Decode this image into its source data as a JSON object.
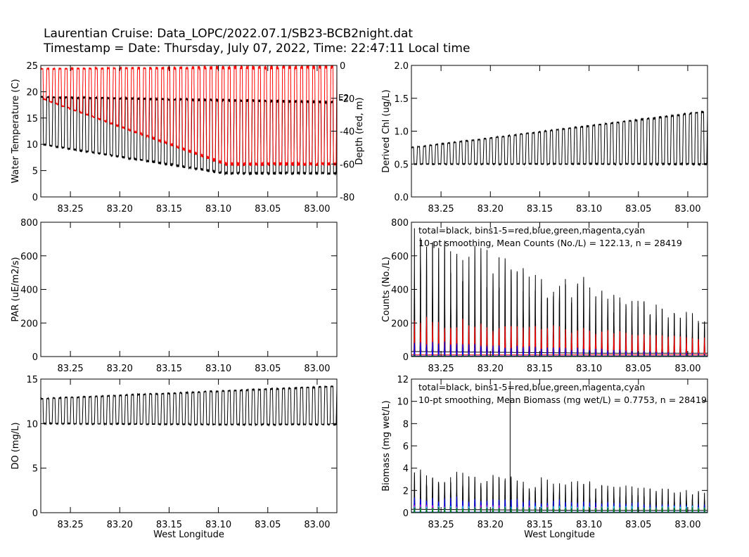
{
  "header": {
    "title": "Laurentian Cruise: Data_LOPC/2022.07.1/SB23-BCB2night.dat",
    "subtitle": "Timestamp = Date: Thursday, July 07, 2022, Time: 22:47:11 Local time"
  },
  "colors": {
    "total": "#000000",
    "depth": "#ff0000",
    "bin1": "#ff0000",
    "bin2": "#0000ff",
    "bin3": "#00c000",
    "bin4": "#ff00ff",
    "bin5": "#00ffff"
  },
  "x_axis": {
    "label": "West Longitude",
    "xlim": [
      83.28,
      82.98
    ],
    "ticks": [
      "83.25",
      "83.20",
      "83.15",
      "83.10",
      "83.05",
      "83.00"
    ]
  },
  "chart_data": [
    {
      "id": "temperature",
      "type": "line",
      "ylabel": "Water Temperature (C)",
      "ylim": [
        0,
        25
      ],
      "yticks": [
        "0",
        "5",
        "10",
        "15",
        "20",
        "25"
      ],
      "y2label": "Depth (red, m)",
      "y2lim": [
        -80,
        0
      ],
      "y2ticks": [
        "-80",
        "-60",
        "-40",
        "-20",
        "0"
      ],
      "y2_extra_label": "E2",
      "series": [
        {
          "color": "black",
          "profile": "yo",
          "cycles": 49,
          "top": [
            19,
            18
          ],
          "bottom": [
            10,
            4.5
          ]
        },
        {
          "color": "red",
          "axis": "right",
          "profile": "yo",
          "cycles": 49,
          "top": [
            -2,
            -1
          ],
          "bottom": [
            -20,
            -60
          ]
        }
      ]
    },
    {
      "id": "chl",
      "type": "line",
      "ylabel": "Derived Chl (ug/L)",
      "ylim": [
        0.0,
        2.0
      ],
      "yticks": [
        "0.0",
        "0.5",
        "1.0",
        "1.5",
        "2.0"
      ],
      "series": [
        {
          "color": "black",
          "profile": "yo",
          "cycles": 49,
          "top": [
            0.75,
            1.3
          ],
          "bottom": [
            0.5,
            0.5
          ]
        }
      ]
    },
    {
      "id": "par",
      "type": "line",
      "ylabel": "PAR (uE/m2/s)",
      "ylim": [
        0,
        800
      ],
      "yticks": [
        "0",
        "200",
        "400",
        "600",
        "800"
      ],
      "series": []
    },
    {
      "id": "counts",
      "type": "line",
      "ylabel": "Counts (No./L)",
      "ylim": [
        0,
        800
      ],
      "yticks": [
        "0",
        "200",
        "400",
        "600",
        "800"
      ],
      "annotation": [
        "total=black, bins1-5=red,blue,green,magenta,cyan",
        "10-pt smoothing,   Mean Counts (No./L) = 122.13, n = 28419"
      ],
      "series": [
        {
          "color": "black",
          "profile": "spike",
          "cycles": 49,
          "top": [
            650,
            200
          ],
          "bottom": [
            30,
            20
          ]
        },
        {
          "color": "red",
          "profile": "spike",
          "cycles": 49,
          "top": [
            200,
            100
          ],
          "bottom": [
            10,
            10
          ]
        },
        {
          "color": "blue",
          "profile": "spike",
          "cycles": 49,
          "top": [
            80,
            15
          ],
          "bottom": [
            3,
            3
          ]
        },
        {
          "color": "green",
          "profile": "spike",
          "cycles": 49,
          "top": [
            10,
            8
          ],
          "bottom": [
            1,
            1
          ]
        }
      ]
    },
    {
      "id": "do",
      "type": "line",
      "ylabel": "DO (mg/L)",
      "ylim": [
        0,
        15
      ],
      "yticks": [
        "0",
        "5",
        "10",
        "15"
      ],
      "series": [
        {
          "color": "black",
          "profile": "yo",
          "cycles": 49,
          "top": [
            12.8,
            14.2
          ],
          "bottom": [
            10.0,
            9.9
          ]
        }
      ]
    },
    {
      "id": "biomass",
      "type": "line",
      "ylabel": "Biomass (mg wet/L)",
      "ylim": [
        0,
        12
      ],
      "yticks": [
        "0",
        "2",
        "4",
        "6",
        "8",
        "10",
        "12"
      ],
      "annotation": [
        "total=black, bins1-5=red,blue,green,magenta,cyan",
        "10-pt smoothing,   Mean Biomass (mg wet/L) = 0.7753, n = 28419"
      ],
      "series": [
        {
          "color": "black",
          "profile": "spike",
          "cycles": 49,
          "top": [
            3.5,
            1.6
          ],
          "bottom": [
            0.3,
            0.2
          ],
          "extra_spike": {
            "x": 83.18,
            "y": 11.8
          }
        },
        {
          "color": "blue",
          "profile": "spike",
          "cycles": 49,
          "top": [
            1.3,
            0.6
          ],
          "bottom": [
            0.05,
            0.05
          ]
        },
        {
          "color": "magenta",
          "profile": "spike",
          "cycles": 49,
          "top": [
            0.6,
            0.4
          ],
          "bottom": [
            0.02,
            0.02
          ]
        },
        {
          "color": "cyan",
          "profile": "spike",
          "cycles": 49,
          "top": [
            0.5,
            0.5
          ],
          "bottom": [
            0.02,
            0.02
          ]
        },
        {
          "color": "green",
          "profile": "spike",
          "cycles": 49,
          "top": [
            0.4,
            0.4
          ],
          "bottom": [
            0.02,
            0.02
          ]
        }
      ]
    }
  ]
}
